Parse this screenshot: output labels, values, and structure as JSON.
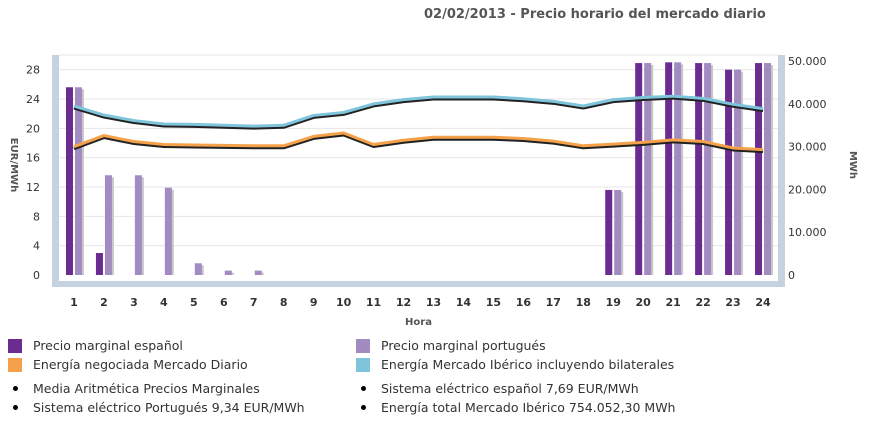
{
  "title": "02/02/2013 - Precio horario del mercado diario",
  "chart_data": {
    "type": "bar+line",
    "xlabel": "Hora",
    "ylabel_left": "EUR/MWh",
    "ylabel_right": "MWh",
    "categories": [
      "1",
      "2",
      "3",
      "4",
      "5",
      "6",
      "7",
      "8",
      "9",
      "10",
      "11",
      "12",
      "13",
      "14",
      "15",
      "16",
      "17",
      "18",
      "19",
      "20",
      "21",
      "22",
      "23",
      "24"
    ],
    "ylim_left": [
      0,
      30
    ],
    "yticks_left": [
      "0",
      "4",
      "8",
      "12",
      "16",
      "20",
      "24",
      "28"
    ],
    "ylim_right": [
      0,
      51428
    ],
    "yticks_right": [
      "0",
      "10.000",
      "20.000",
      "30.000",
      "40.000",
      "50.000"
    ],
    "series": [
      {
        "name": "Precio marginal español",
        "kind": "bar",
        "axis": "left",
        "color": "#6a2c91",
        "values": [
          25.6,
          3.0,
          0,
          0,
          0,
          0,
          0,
          0,
          0,
          0,
          0,
          0,
          0,
          0,
          0,
          0,
          0,
          0,
          11.6,
          28.9,
          29.0,
          28.9,
          28.0,
          28.9
        ]
      },
      {
        "name": "Precio marginal portugués",
        "kind": "bar",
        "axis": "left",
        "color": "#a28bc0",
        "values": [
          25.6,
          13.6,
          13.6,
          11.9,
          1.6,
          0.6,
          0.6,
          0,
          0,
          0,
          0,
          0,
          0,
          0,
          0,
          0,
          0,
          0,
          11.6,
          28.9,
          29.0,
          28.9,
          28.0,
          28.9
        ]
      },
      {
        "name": "Energía negociada Mercado Diario",
        "kind": "line",
        "axis": "right",
        "color": "#f5a14a",
        "values": [
          30000,
          32600,
          31200,
          30500,
          30400,
          30300,
          30200,
          30200,
          32400,
          33200,
          30500,
          31500,
          32200,
          32200,
          32200,
          31900,
          31300,
          30200,
          30600,
          31000,
          31600,
          31200,
          29700,
          29300
        ]
      },
      {
        "name": "Energía Mercado Ibérico incluyendo bilaterales",
        "kind": "line",
        "axis": "right",
        "color": "#7ec5dc",
        "values": [
          39500,
          37400,
          36100,
          35300,
          35200,
          35000,
          34800,
          35000,
          37300,
          38000,
          40000,
          41000,
          41600,
          41600,
          41600,
          41200,
          40600,
          39500,
          41000,
          41500,
          41800,
          41300,
          39900,
          38900
        ]
      }
    ],
    "grid": true,
    "legend_position": "bottom"
  },
  "legend": {
    "items": [
      {
        "label": "Precio marginal español",
        "color": "#6a2c91"
      },
      {
        "label": "Precio marginal portugués",
        "color": "#a28bc0"
      },
      {
        "label": "Energía negociada Mercado Diario",
        "color": "#f5a14a"
      },
      {
        "label": "Energía Mercado Ibérico incluyendo bilaterales",
        "color": "#7ec5dc"
      }
    ],
    "stats": [
      {
        "label": "Media Aritmética Precios Marginales"
      },
      {
        "label": "Sistema eléctrico español  7,69 EUR/MWh"
      },
      {
        "label": "Sistema eléctrico Portugués  9,34 EUR/MWh"
      },
      {
        "label": "Energía total Mercado Ibérico  754.052,30 MWh"
      }
    ]
  }
}
